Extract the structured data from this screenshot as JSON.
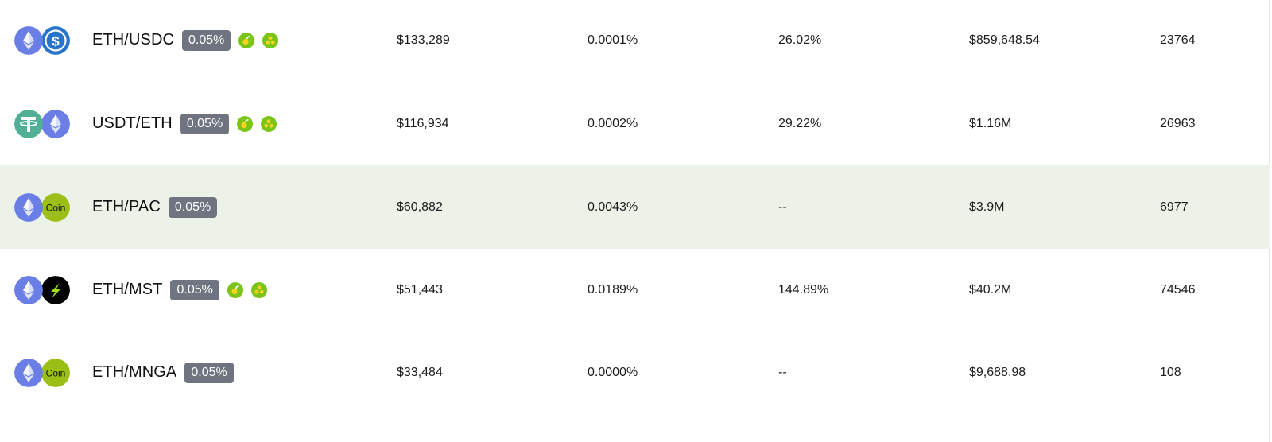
{
  "rows": [
    {
      "pair": "ETH/USDC",
      "fee_tier": "0.05%",
      "token0_icon": "eth-icon",
      "token1_icon": "usdc-icon",
      "reward_icons": [
        "farm-reward-icon",
        "pool-reward-icon"
      ],
      "tvl": "$133,289",
      "fee_rate": "0.0001%",
      "apr": "26.02%",
      "volume": "$859,648.54",
      "transactions": "23764",
      "highlighted": false
    },
    {
      "pair": "USDT/ETH",
      "fee_tier": "0.05%",
      "token0_icon": "usdt-icon",
      "token1_icon": "eth-icon",
      "reward_icons": [
        "farm-reward-icon",
        "pool-reward-icon"
      ],
      "tvl": "$116,934",
      "fee_rate": "0.0002%",
      "apr": "29.22%",
      "volume": "$1.16M",
      "transactions": "26963",
      "highlighted": false
    },
    {
      "pair": "ETH/PAC",
      "fee_tier": "0.05%",
      "token0_icon": "eth-icon",
      "token1_icon": "coin-placeholder-icon",
      "token1_icon_text": "Coin",
      "reward_icons": [],
      "tvl": "$60,882",
      "fee_rate": "0.0043%",
      "apr": "--",
      "volume": "$3.9M",
      "transactions": "6977",
      "highlighted": true
    },
    {
      "pair": "ETH/MST",
      "fee_tier": "0.05%",
      "token0_icon": "eth-icon",
      "token1_icon": "mst-bolt-icon",
      "reward_icons": [
        "farm-reward-icon",
        "pool-reward-icon"
      ],
      "tvl": "$51,443",
      "fee_rate": "0.0189%",
      "apr": "144.89%",
      "volume": "$40.2M",
      "transactions": "74546",
      "highlighted": false
    },
    {
      "pair": "ETH/MNGA",
      "fee_tier": "0.05%",
      "token0_icon": "eth-icon",
      "token1_icon": "coin-placeholder-icon",
      "token1_icon_text": "Coin",
      "reward_icons": [],
      "tvl": "$33,484",
      "fee_rate": "0.0000%",
      "apr": "--",
      "volume": "$9,688.98",
      "transactions": "108",
      "highlighted": false
    }
  ],
  "colors": {
    "eth": "#6a7ee6",
    "usdc": "#2775ca",
    "usdt": "#50af95",
    "coin_placeholder": "#9bbf17",
    "mst": "#000000",
    "mst_bolt": "#9be11c",
    "reward_green": "#7bc41a",
    "badge": "#6f7480",
    "row_highlight": "#edf2e8"
  }
}
